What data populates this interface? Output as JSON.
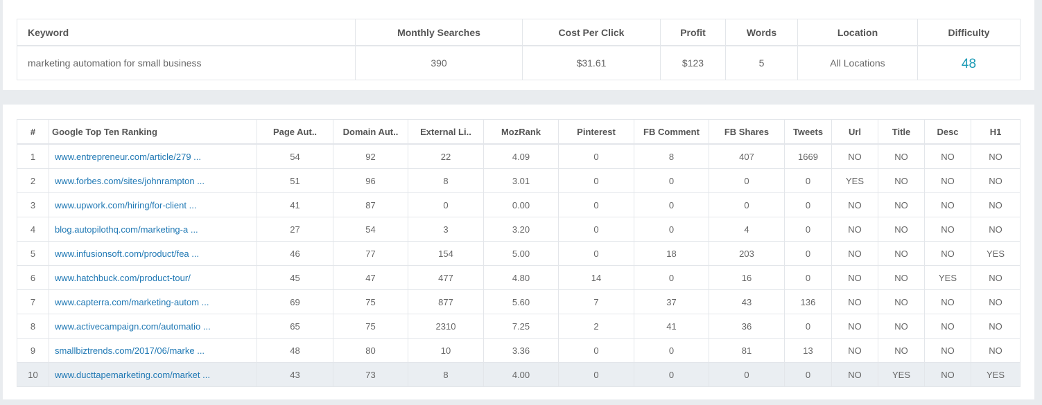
{
  "keyword_table": {
    "headers": [
      "Keyword",
      "Monthly Searches",
      "Cost Per Click",
      "Profit",
      "Words",
      "Location",
      "Difficulty"
    ],
    "row": {
      "keyword": "marketing automation for small business",
      "monthly_searches": "390",
      "cost_per_click": "$31.61",
      "profit": "$123",
      "words": "5",
      "location": "All Locations",
      "difficulty": "48"
    },
    "difficulty_color": "#1a9ab5"
  },
  "ranking_table": {
    "headers": [
      "#",
      "Google Top Ten Ranking",
      "Page Aut..",
      "Domain Aut..",
      "External Li..",
      "MozRank",
      "Pinterest",
      "FB Comment",
      "FB Shares",
      "Tweets",
      "Url",
      "Title",
      "Desc",
      "H1"
    ],
    "link_color": "#1f78b4",
    "highlight_row_color": "#eaeef2",
    "rows": [
      [
        "1",
        "www.entrepreneur.com/article/279 ...",
        "54",
        "92",
        "22",
        "4.09",
        "0",
        "8",
        "407",
        "1669",
        "NO",
        "NO",
        "NO",
        "NO"
      ],
      [
        "2",
        "www.forbes.com/sites/johnrampton ...",
        "51",
        "96",
        "8",
        "3.01",
        "0",
        "0",
        "0",
        "0",
        "YES",
        "NO",
        "NO",
        "NO"
      ],
      [
        "3",
        "www.upwork.com/hiring/for-client ...",
        "41",
        "87",
        "0",
        "0.00",
        "0",
        "0",
        "0",
        "0",
        "NO",
        "NO",
        "NO",
        "NO"
      ],
      [
        "4",
        "blog.autopilothq.com/marketing-a ...",
        "27",
        "54",
        "3",
        "3.20",
        "0",
        "0",
        "4",
        "0",
        "NO",
        "NO",
        "NO",
        "NO"
      ],
      [
        "5",
        "www.infusionsoft.com/product/fea ...",
        "46",
        "77",
        "154",
        "5.00",
        "0",
        "18",
        "203",
        "0",
        "NO",
        "NO",
        "NO",
        "YES"
      ],
      [
        "6",
        "www.hatchbuck.com/product-tour/",
        "45",
        "47",
        "477",
        "4.80",
        "14",
        "0",
        "16",
        "0",
        "NO",
        "NO",
        "YES",
        "NO"
      ],
      [
        "7",
        "www.capterra.com/marketing-autom ...",
        "69",
        "75",
        "877",
        "5.60",
        "7",
        "37",
        "43",
        "136",
        "NO",
        "NO",
        "NO",
        "NO"
      ],
      [
        "8",
        "www.activecampaign.com/automatio ...",
        "65",
        "75",
        "2310",
        "7.25",
        "2",
        "41",
        "36",
        "0",
        "NO",
        "NO",
        "NO",
        "NO"
      ],
      [
        "9",
        "smallbiztrends.com/2017/06/marke ...",
        "48",
        "80",
        "10",
        "3.36",
        "0",
        "0",
        "81",
        "13",
        "NO",
        "NO",
        "NO",
        "NO"
      ],
      [
        "10",
        "www.ducttapemarketing.com/market ...",
        "43",
        "73",
        "8",
        "4.00",
        "0",
        "0",
        "0",
        "0",
        "NO",
        "YES",
        "NO",
        "YES"
      ]
    ],
    "highlighted_row": 9
  }
}
